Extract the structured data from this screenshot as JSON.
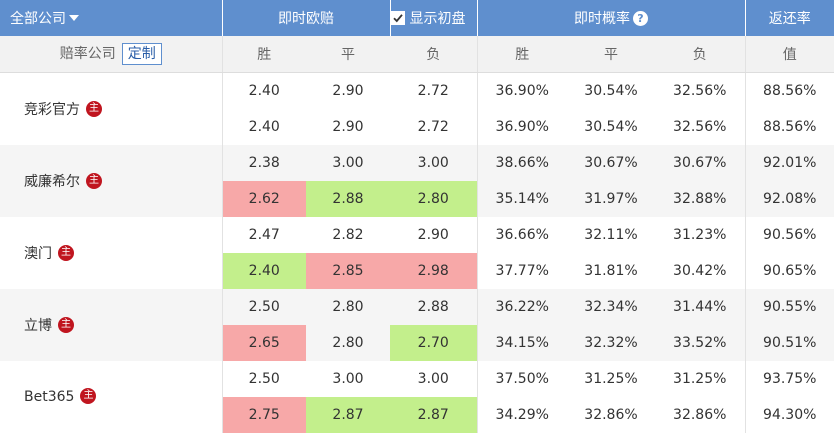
{
  "header": {
    "company_filter": "全部公司",
    "live_odds": "即时欧赔",
    "show_initial": "显示初盘",
    "show_initial_checked": true,
    "live_prob": "即时概率",
    "help_glyph": "?",
    "return_rate": "返还率"
  },
  "subheader": {
    "bookmaker": "赔率公司",
    "custom_button": "定制",
    "win": "胜",
    "draw": "平",
    "lose": "负",
    "win_p": "胜",
    "draw_p": "平",
    "lose_p": "负",
    "value": "值"
  },
  "badge_text": "主",
  "colors": {
    "header_bg": "#5f8fce",
    "up": "#f7a8a8",
    "down": "#c3ef8c",
    "badge": "#c0151f"
  },
  "rows": [
    {
      "name": "竞彩官方",
      "initial": {
        "w": "2.40",
        "d": "2.90",
        "l": "2.72",
        "pw": "36.90%",
        "pd": "30.54%",
        "pl": "32.56%",
        "rr": "88.56%"
      },
      "live": {
        "w": "2.40",
        "d": "2.90",
        "l": "2.72",
        "pw": "36.90%",
        "pd": "30.54%",
        "pl": "32.56%",
        "rr": "88.56%"
      },
      "live_trend": {
        "w": "",
        "d": "",
        "l": ""
      }
    },
    {
      "name": "威廉希尔",
      "initial": {
        "w": "2.38",
        "d": "3.00",
        "l": "3.00",
        "pw": "38.66%",
        "pd": "30.67%",
        "pl": "30.67%",
        "rr": "92.01%"
      },
      "live": {
        "w": "2.62",
        "d": "2.88",
        "l": "2.80",
        "pw": "35.14%",
        "pd": "31.97%",
        "pl": "32.88%",
        "rr": "92.08%"
      },
      "live_trend": {
        "w": "up",
        "d": "down",
        "l": "down"
      }
    },
    {
      "name": "澳门",
      "initial": {
        "w": "2.47",
        "d": "2.82",
        "l": "2.90",
        "pw": "36.66%",
        "pd": "32.11%",
        "pl": "31.23%",
        "rr": "90.56%"
      },
      "live": {
        "w": "2.40",
        "d": "2.85",
        "l": "2.98",
        "pw": "37.77%",
        "pd": "31.81%",
        "pl": "30.42%",
        "rr": "90.65%"
      },
      "live_trend": {
        "w": "down",
        "d": "up",
        "l": "up"
      }
    },
    {
      "name": "立博",
      "initial": {
        "w": "2.50",
        "d": "2.80",
        "l": "2.88",
        "pw": "36.22%",
        "pd": "32.34%",
        "pl": "31.44%",
        "rr": "90.55%"
      },
      "live": {
        "w": "2.65",
        "d": "2.80",
        "l": "2.70",
        "pw": "34.15%",
        "pd": "32.32%",
        "pl": "33.52%",
        "rr": "90.51%"
      },
      "live_trend": {
        "w": "up",
        "d": "",
        "l": "down"
      }
    },
    {
      "name": "Bet365",
      "initial": {
        "w": "2.50",
        "d": "3.00",
        "l": "3.00",
        "pw": "37.50%",
        "pd": "31.25%",
        "pl": "31.25%",
        "rr": "93.75%"
      },
      "live": {
        "w": "2.75",
        "d": "2.87",
        "l": "2.87",
        "pw": "34.29%",
        "pd": "32.86%",
        "pl": "32.86%",
        "rr": "94.30%"
      },
      "live_trend": {
        "w": "up",
        "d": "down",
        "l": "down"
      }
    }
  ]
}
